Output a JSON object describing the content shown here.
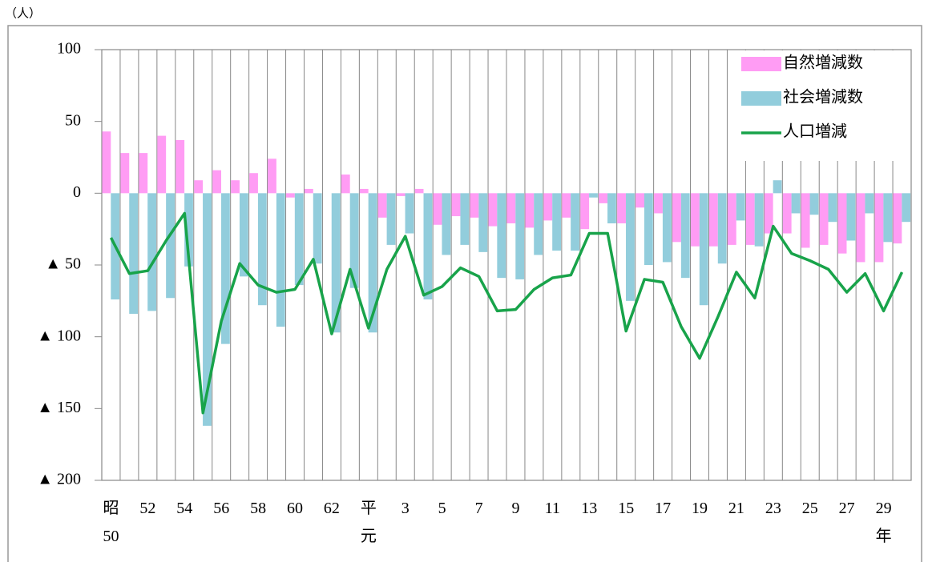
{
  "chart_data": {
    "type": "bar",
    "unit_label": "（人）",
    "categories": [
      "昭\n50",
      null,
      "52",
      null,
      "54",
      null,
      "56",
      null,
      "58",
      null,
      "60",
      null,
      "62",
      null,
      "平\n元",
      null,
      "3",
      null,
      "5",
      null,
      "7",
      null,
      "9",
      null,
      "11",
      null,
      "13",
      null,
      "15",
      null,
      "17",
      null,
      "19",
      null,
      "21",
      null,
      "23",
      null,
      "25",
      null,
      "27",
      null,
      "29\n年",
      null
    ],
    "series": [
      {
        "name": "自然増減数",
        "type": "bar",
        "color": "#ff9cf4",
        "values": [
          43,
          28,
          28,
          40,
          37,
          9,
          16,
          9,
          14,
          24,
          -3,
          3,
          0,
          13,
          3,
          -17,
          -2,
          3,
          -22,
          -16,
          -17,
          -23,
          -21,
          -24,
          -19,
          -17,
          -25,
          -7,
          -21,
          -10,
          -14,
          -34,
          -37,
          -37,
          -36,
          -36,
          -28,
          -28,
          -38,
          -36,
          -42,
          -48,
          -48,
          -35
        ]
      },
      {
        "name": "社会増減数",
        "type": "bar",
        "color": "#92cddc",
        "values": [
          -74,
          -84,
          -82,
          -73,
          -51,
          -162,
          -105,
          -58,
          -78,
          -93,
          -64,
          -49,
          -97,
          -66,
          -97,
          -36,
          -28,
          -74,
          -43,
          -36,
          -41,
          -59,
          -60,
          -43,
          -40,
          -40,
          -3,
          -21,
          -75,
          -50,
          -48,
          -59,
          -78,
          -49,
          -19,
          -37,
          9,
          -14,
          -15,
          -20,
          -33,
          -14,
          -34,
          -20
        ]
      },
      {
        "name": "人口増減",
        "type": "line",
        "color": "#18a34a",
        "values": [
          -31,
          -56,
          -54,
          -33,
          -14,
          -153,
          -89,
          -49,
          -64,
          -69,
          -67,
          -46,
          -98,
          -53,
          -94,
          -53,
          -30,
          -71,
          -65,
          -52,
          -58,
          -82,
          -81,
          -67,
          -59,
          -57,
          -28,
          -28,
          -96,
          -60,
          -62,
          -93,
          -115,
          -86,
          -55,
          -73,
          -23,
          -42,
          -47,
          -53,
          -69,
          -56,
          -82,
          -55
        ]
      }
    ],
    "ylim": [
      -200,
      100
    ],
    "yticks": [
      {
        "value": -200,
        "label": "▲ 200"
      },
      {
        "value": -150,
        "label": "▲ 150"
      },
      {
        "value": -100,
        "label": "▲ 100"
      },
      {
        "value": -50,
        "label": "▲ 50"
      },
      0,
      50,
      100
    ],
    "grid_x": true,
    "legend": "upper right"
  }
}
